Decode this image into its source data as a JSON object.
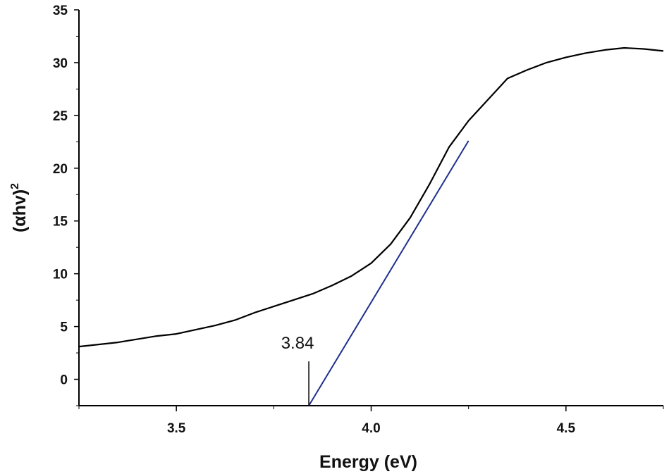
{
  "chart_data": {
    "type": "line",
    "xlabel": "Energy (eV)",
    "ylabel": "(αhv)",
    "ylabel_superscript": "2",
    "xlim": [
      3.25,
      4.75
    ],
    "ylim": [
      -2.5,
      35
    ],
    "x_ticks": [
      {
        "value": 3.5,
        "label": "3.5"
      },
      {
        "value": 4.0,
        "label": "4.0"
      },
      {
        "value": 4.5,
        "label": "4.5"
      }
    ],
    "y_ticks": [
      {
        "value": 0,
        "label": "0"
      },
      {
        "value": 5,
        "label": "5"
      },
      {
        "value": 10,
        "label": "10"
      },
      {
        "value": 15,
        "label": "15"
      },
      {
        "value": 20,
        "label": "20"
      },
      {
        "value": 25,
        "label": "25"
      },
      {
        "value": 30,
        "label": "30"
      },
      {
        "value": 35,
        "label": "35"
      }
    ],
    "grid": false,
    "series": [
      {
        "color": "#000000",
        "x": [
          3.25,
          3.3,
          3.35,
          3.4,
          3.45,
          3.5,
          3.55,
          3.6,
          3.65,
          3.7,
          3.75,
          3.8,
          3.85,
          3.9,
          3.95,
          4.0,
          4.05,
          4.1,
          4.15,
          4.2,
          4.25,
          4.3,
          4.35,
          4.4,
          4.45,
          4.5,
          4.55,
          4.6,
          4.65,
          4.7,
          4.75
        ],
        "y": [
          3.1,
          3.3,
          3.5,
          3.8,
          4.1,
          4.3,
          4.7,
          5.1,
          5.6,
          6.3,
          6.9,
          7.5,
          8.1,
          8.9,
          9.8,
          11.0,
          12.8,
          15.3,
          18.5,
          22.0,
          24.5,
          26.5,
          28.5,
          29.3,
          30.0,
          30.5,
          30.9,
          31.2,
          31.4,
          31.3,
          31.1
        ]
      }
    ],
    "fit_line": {
      "color": "#1f2f8f",
      "x": [
        3.84,
        4.25
      ],
      "y": [
        -2.5,
        22.6
      ]
    },
    "annotations": [
      {
        "text": "3.84",
        "x": 3.84
      }
    ]
  }
}
